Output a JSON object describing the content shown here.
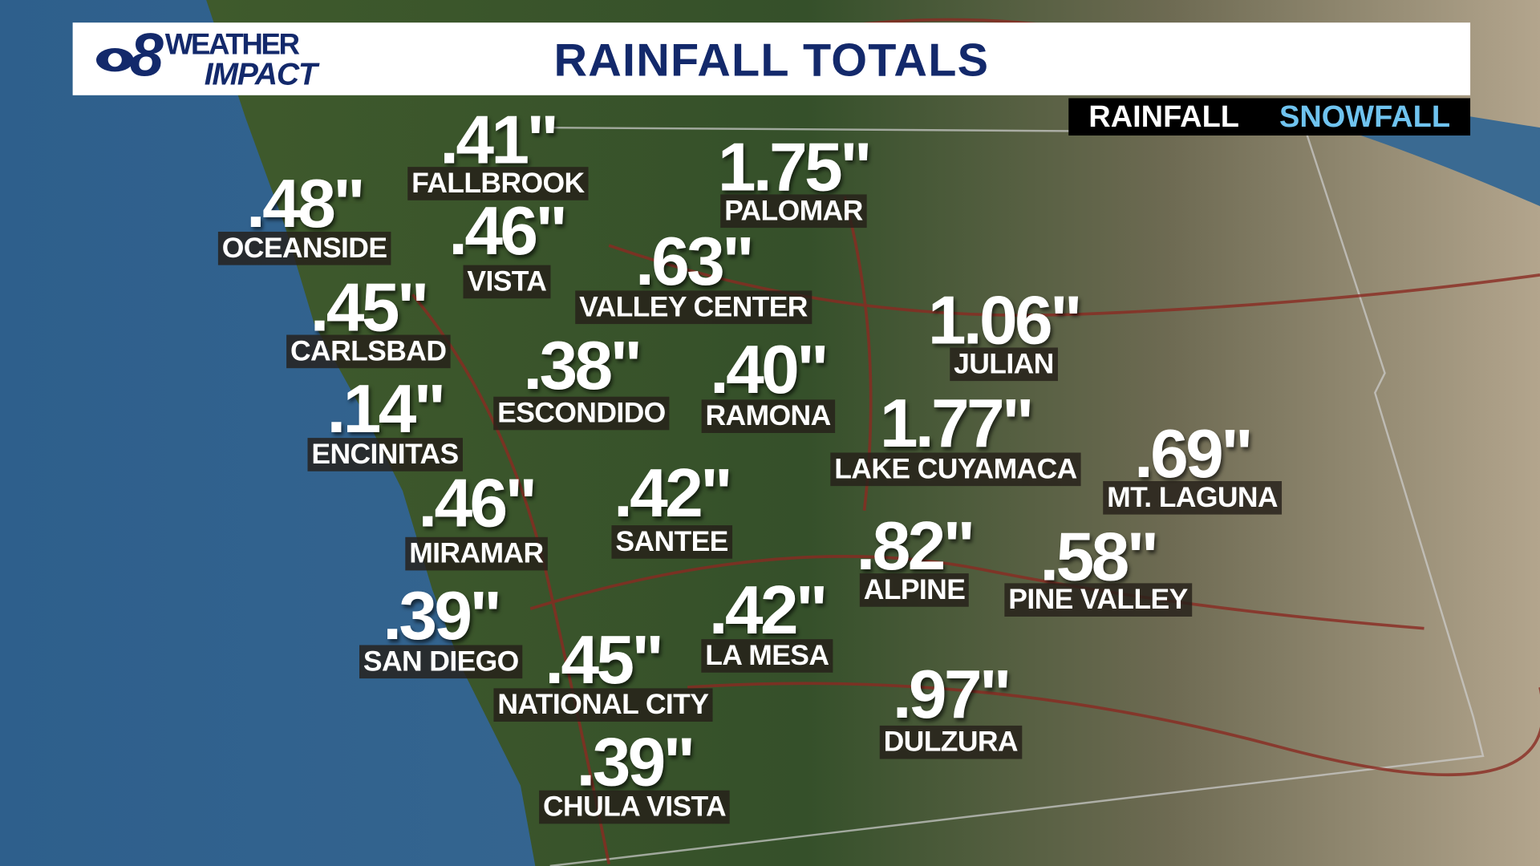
{
  "header": {
    "logo": {
      "number": "8",
      "line1": "WEATHER",
      "line2": "IMPACT"
    },
    "title": "RAINFALL TOTALS"
  },
  "tabs": [
    "RAINFALL",
    "SNOWFALL"
  ],
  "locations": [
    {
      "name": "FALLBROOK",
      "value": ".41\""
    },
    {
      "name": "PALOMAR",
      "value": "1.75\""
    },
    {
      "name": "OCEANSIDE",
      "value": ".48\""
    },
    {
      "name": "VISTA",
      "value": ".46\""
    },
    {
      "name": "VALLEY CENTER",
      "value": ".63\""
    },
    {
      "name": "CARLSBAD",
      "value": ".45\""
    },
    {
      "name": "JULIAN",
      "value": "1.06\""
    },
    {
      "name": "ESCONDIDO",
      "value": ".38\""
    },
    {
      "name": "RAMONA",
      "value": ".40\""
    },
    {
      "name": "ENCINITAS",
      "value": ".14\""
    },
    {
      "name": "LAKE CUYAMACA",
      "value": "1.77\""
    },
    {
      "name": "MT. LAGUNA",
      "value": ".69\""
    },
    {
      "name": "MIRAMAR",
      "value": ".46\""
    },
    {
      "name": "SANTEE",
      "value": ".42\""
    },
    {
      "name": "ALPINE",
      "value": ".82\""
    },
    {
      "name": "PINE VALLEY",
      "value": ".58\""
    },
    {
      "name": "SAN DIEGO",
      "value": ".39\""
    },
    {
      "name": "LA MESA",
      "value": ".42\""
    },
    {
      "name": "NATIONAL CITY",
      "value": ".45\""
    },
    {
      "name": "DULZURA",
      "value": ".97\""
    },
    {
      "name": "CHULA VISTA",
      "value": ".39\""
    }
  ]
}
